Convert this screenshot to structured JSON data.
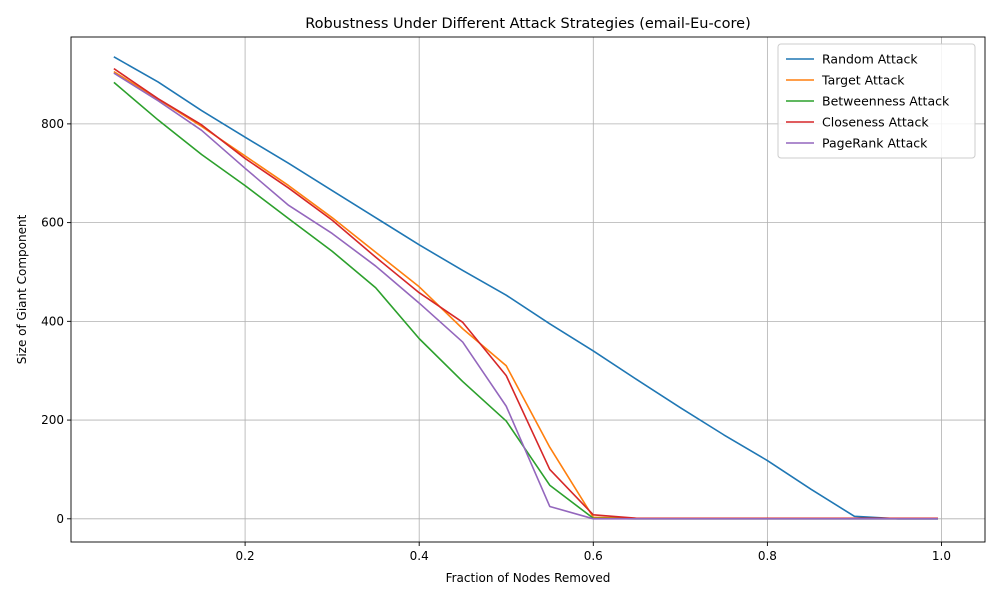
{
  "chart_data": {
    "type": "line",
    "title": "Robustness Under Different Attack Strategies (email-Eu-core)",
    "xlabel": "Fraction of Nodes Removed",
    "ylabel": "Size of Giant Component",
    "xlim": [
      0.0,
      1.05
    ],
    "ylim": [
      -47,
      976
    ],
    "xticks": [
      0.2,
      0.4,
      0.6,
      0.8,
      1.0
    ],
    "xtick_labels": [
      "0.2",
      "0.4",
      "0.6",
      "0.8",
      "1.0"
    ],
    "yticks": [
      0,
      200,
      400,
      600,
      800
    ],
    "ytick_labels": [
      "0",
      "200",
      "400",
      "600",
      "800"
    ],
    "grid": true,
    "legend_position": "top-right",
    "x": [
      0.05,
      0.1,
      0.15,
      0.2,
      0.25,
      0.3,
      0.35,
      0.4,
      0.45,
      0.5,
      0.55,
      0.6,
      0.65,
      0.7,
      0.75,
      0.8,
      0.85,
      0.9,
      0.95,
      0.995
    ],
    "series": [
      {
        "name": "Random Attack",
        "color": "#1f77b4",
        "values": [
          935,
          885,
          827,
          773,
          720,
          665,
          610,
          555,
          503,
          453,
          395,
          340,
          282,
          225,
          170,
          118,
          60,
          5,
          0,
          0
        ]
      },
      {
        "name": "Target Attack",
        "color": "#ff7f0e",
        "values": [
          905,
          850,
          795,
          735,
          675,
          610,
          540,
          470,
          385,
          310,
          145,
          3,
          1,
          1,
          1,
          1,
          1,
          1,
          1,
          1
        ]
      },
      {
        "name": "Betweenness Attack",
        "color": "#2ca02c",
        "values": [
          883,
          808,
          738,
          675,
          608,
          542,
          468,
          365,
          278,
          198,
          68,
          1,
          0,
          0,
          0,
          0,
          0,
          0,
          0,
          0
        ]
      },
      {
        "name": "Closeness Attack",
        "color": "#d62728",
        "values": [
          911,
          851,
          798,
          730,
          670,
          605,
          530,
          458,
          398,
          290,
          100,
          8,
          1,
          1,
          1,
          1,
          1,
          1,
          1,
          1
        ]
      },
      {
        "name": "PageRank Attack",
        "color": "#9467bd",
        "values": [
          902,
          847,
          787,
          710,
          635,
          578,
          512,
          437,
          358,
          228,
          25,
          0,
          0,
          0,
          0,
          0,
          0,
          0,
          0,
          0
        ]
      }
    ]
  }
}
